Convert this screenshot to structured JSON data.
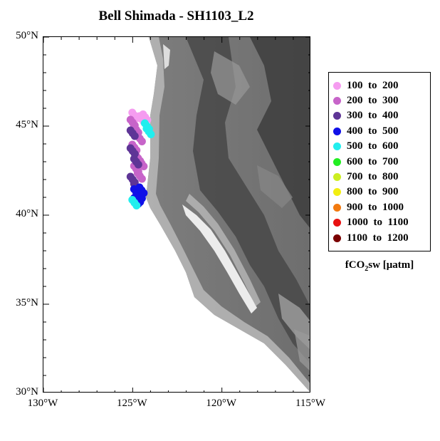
{
  "title": "Bell Shimada - SH1103_L2",
  "map": {
    "lon_range": [
      -130,
      -115
    ],
    "lat_range": [
      30,
      50
    ],
    "lat_ticks": [
      {
        "value": 50,
        "label": "50°N"
      },
      {
        "value": 45,
        "label": "45°N"
      },
      {
        "value": 40,
        "label": "40°N"
      },
      {
        "value": 35,
        "label": "35°N"
      },
      {
        "value": 30,
        "label": "30°N"
      }
    ],
    "lon_ticks": [
      {
        "value": -130,
        "label": "130°W"
      },
      {
        "value": -125,
        "label": "125°W"
      },
      {
        "value": -120,
        "label": "120°W"
      },
      {
        "value": -115,
        "label": "115°W"
      }
    ],
    "land_shading": "grayscale topography",
    "ocean_color": "#ffffff"
  },
  "legend": {
    "placement": "right",
    "unit_prefix": "fCO",
    "unit_sub": "2",
    "unit_suffix": "sw [μatm]",
    "items": [
      {
        "label": "100  to  200",
        "color": "#f59cf0"
      },
      {
        "label": "200  to  300",
        "color": "#c764c9"
      },
      {
        "label": "300  to  400",
        "color": "#5e3596"
      },
      {
        "label": "400  to  500",
        "color": "#1010e8"
      },
      {
        "label": "500  to  600",
        "color": "#22eeee"
      },
      {
        "label": "600  to  700",
        "color": "#22ee22"
      },
      {
        "label": "700  to  800",
        "color": "#ccee22"
      },
      {
        "label": "800  to  900",
        "color": "#f2ee10"
      },
      {
        "label": "900  to  1000",
        "color": "#f27a10"
      },
      {
        "label": "1000  to  1100",
        "color": "#e81010"
      },
      {
        "label": "1100  to  1200",
        "color": "#7a0000"
      }
    ]
  },
  "chart_data": {
    "type": "scatter",
    "title": "Bell Shimada - SH1103_L2",
    "xlabel": "",
    "ylabel": "",
    "xlim": [
      -130,
      -115
    ],
    "ylim": [
      30,
      50
    ],
    "series": [
      {
        "name": "100  to  200",
        "points": [
          [
            -124.9,
            45.6
          ],
          [
            -124.5,
            45.4
          ],
          [
            -124.3,
            45.5
          ]
        ]
      },
      {
        "name": "200  to  300",
        "points": [
          [
            -125.0,
            45.2
          ],
          [
            -124.8,
            44.8
          ],
          [
            -124.6,
            44.3
          ],
          [
            -124.9,
            43.8
          ],
          [
            -124.7,
            43.2
          ],
          [
            -124.5,
            42.9
          ],
          [
            -124.8,
            42.6
          ],
          [
            -124.6,
            42.2
          ]
        ]
      },
      {
        "name": "300  to  400",
        "points": [
          [
            -125.0,
            44.6
          ],
          [
            -125.0,
            43.6
          ],
          [
            -124.8,
            43.0
          ],
          [
            -125.0,
            42.0
          ],
          [
            -124.8,
            41.6
          ]
        ]
      },
      {
        "name": "400  to  500",
        "points": [
          [
            -124.8,
            41.3
          ],
          [
            -124.6,
            41.1
          ],
          [
            -124.7,
            40.9
          ],
          [
            -124.5,
            41.4
          ],
          [
            -124.8,
            40.8
          ]
        ]
      },
      {
        "name": "500  to  600",
        "points": [
          [
            -124.2,
            45.0
          ],
          [
            -124.9,
            40.7
          ],
          [
            -124.1,
            44.7
          ]
        ]
      }
    ]
  }
}
